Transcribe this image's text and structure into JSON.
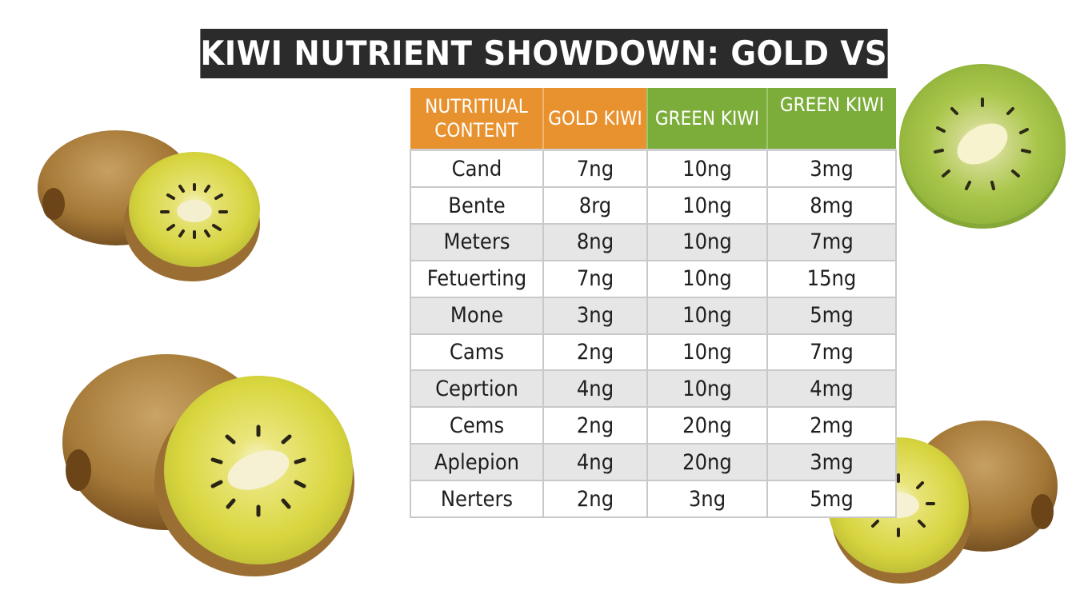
{
  "title": "KIWI NUTRIENT SHOWDOWN: GOLD VS. GREEN",
  "table": {
    "headers": [
      "NUTRITIUAL CONTENT",
      "GOLD KIWI",
      "GREEN KIWI",
      "GREEN KIWI"
    ],
    "rows": [
      [
        "Cand",
        "7ng",
        "10ng",
        "3mg"
      ],
      [
        "Bente",
        "8rg",
        "10ng",
        "8mg"
      ],
      [
        "Meters",
        "8ng",
        "10ng",
        "7mg"
      ],
      [
        "Fetuerting",
        "7ng",
        "10ng",
        "15ng"
      ],
      [
        "Mone",
        "3ng",
        "10ng",
        "5mg"
      ],
      [
        "Cams",
        "2ng",
        "10ng",
        "7mg"
      ],
      [
        "Ceprtion",
        "4ng",
        "10ng",
        "4mg"
      ],
      [
        "Cems",
        "2ng",
        "20ng",
        "2mg"
      ],
      [
        "Aplepion",
        "4ng",
        "20ng",
        "3mg"
      ],
      [
        "Nerters",
        "2ng",
        "3ng",
        "5mg"
      ]
    ]
  },
  "colors": {
    "title_bg": "#2b2b2b",
    "gold_header": "#e8922f",
    "green_header": "#7cad3a",
    "row_alt": "#e6e6e6"
  }
}
